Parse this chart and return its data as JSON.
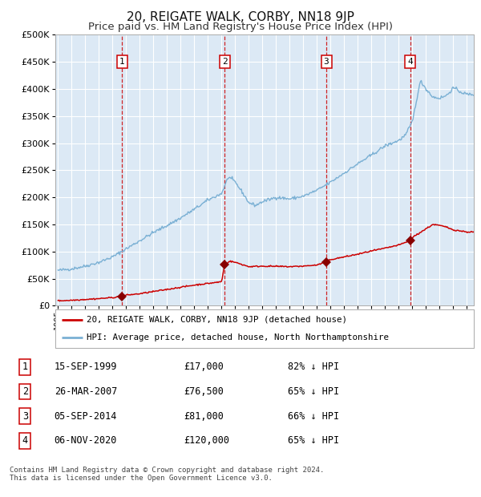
{
  "title": "20, REIGATE WALK, CORBY, NN18 9JP",
  "subtitle": "Price paid vs. HM Land Registry's House Price Index (HPI)",
  "title_fontsize": 11,
  "subtitle_fontsize": 9.5,
  "background_color": "#ffffff",
  "plot_bg_color": "#dce9f5",
  "grid_color": "#ffffff",
  "ylim": [
    0,
    500000
  ],
  "yticks": [
    0,
    50000,
    100000,
    150000,
    200000,
    250000,
    300000,
    350000,
    400000,
    450000,
    500000
  ],
  "ytick_labels": [
    "£0",
    "£50K",
    "£100K",
    "£150K",
    "£200K",
    "£250K",
    "£300K",
    "£350K",
    "£400K",
    "£450K",
    "£500K"
  ],
  "sale_dates_num": [
    1999.71,
    2007.23,
    2014.68,
    2020.84
  ],
  "sale_prices": [
    17000,
    76500,
    81000,
    120000
  ],
  "sale_labels": [
    "1",
    "2",
    "3",
    "4"
  ],
  "sale_line_color": "#cc0000",
  "sale_dot_color": "#880000",
  "hpi_line_color": "#7ab0d4",
  "legend_sale": "20, REIGATE WALK, CORBY, NN18 9JP (detached house)",
  "legend_hpi": "HPI: Average price, detached house, North Northamptonshire",
  "table_rows": [
    [
      "1",
      "15-SEP-1999",
      "£17,000",
      "82% ↓ HPI"
    ],
    [
      "2",
      "26-MAR-2007",
      "£76,500",
      "65% ↓ HPI"
    ],
    [
      "3",
      "05-SEP-2014",
      "£81,000",
      "66% ↓ HPI"
    ],
    [
      "4",
      "06-NOV-2020",
      "£120,000",
      "65% ↓ HPI"
    ]
  ],
  "footer": "Contains HM Land Registry data © Crown copyright and database right 2024.\nThis data is licensed under the Open Government Licence v3.0.",
  "xmin": 1994.8,
  "xmax": 2025.5
}
